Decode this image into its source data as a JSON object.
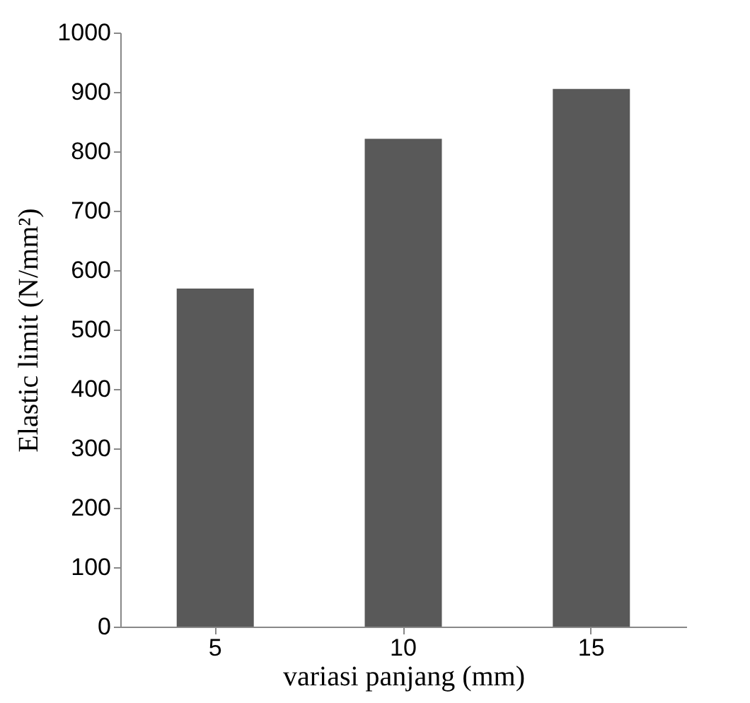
{
  "chart_data": {
    "type": "bar",
    "xlabel": "variasi panjang (mm)",
    "ylabel": "Elastic limit (N/mm²)",
    "categories": [
      "5",
      "10",
      "15"
    ],
    "values": [
      569,
      821,
      905
    ],
    "color": "#595959",
    "ylim": [
      0,
      1000
    ],
    "yticks": [
      0,
      100,
      200,
      300,
      400,
      500,
      600,
      700,
      800,
      900,
      1000
    ],
    "grid": false
  }
}
